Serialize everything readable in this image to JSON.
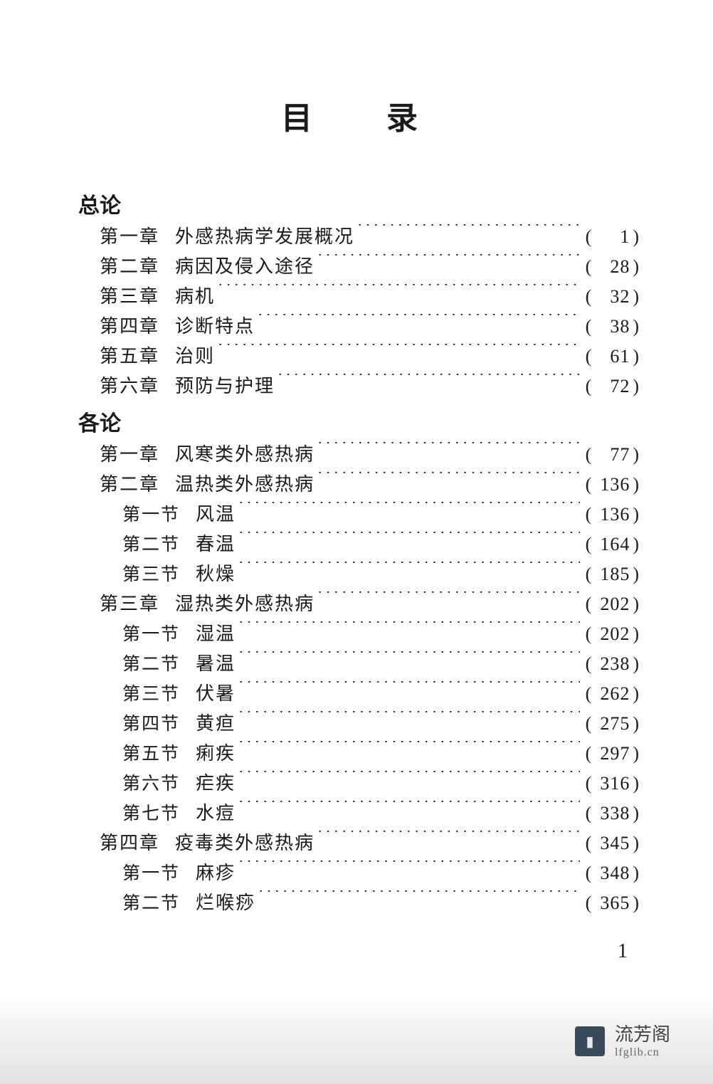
{
  "title": "目　录",
  "page_number": "1",
  "colors": {
    "text": "#1a1a1a",
    "background": "#ffffff",
    "footer_gradient_top": "rgba(180,180,180,0)",
    "footer_gradient_bottom": "rgba(140,140,140,0.25)",
    "footer_logo_bg": "#3a4a5a"
  },
  "typography": {
    "title_fontsize": 44,
    "heading_fontsize": 30,
    "row_fontsize": 26,
    "section_fontsize": 25,
    "font_family": "SimSun/STSong serif"
  },
  "footer": {
    "brand_cn": "流芳阁",
    "brand_en": "lfglib.cn",
    "logo_glyph": "▮"
  },
  "sections": [
    {
      "heading": "总论"
    },
    {
      "level": "chapter",
      "label": "第一章",
      "title": "外感热病学发展概况",
      "page": "1"
    },
    {
      "level": "chapter",
      "label": "第二章",
      "title": "病因及侵入途径",
      "page": "28"
    },
    {
      "level": "chapter",
      "label": "第三章",
      "title": "病机",
      "page": "32"
    },
    {
      "level": "chapter",
      "label": "第四章",
      "title": "诊断特点",
      "page": "38"
    },
    {
      "level": "chapter",
      "label": "第五章",
      "title": "治则",
      "page": "61"
    },
    {
      "level": "chapter",
      "label": "第六章",
      "title": "预防与护理",
      "page": "72"
    },
    {
      "heading": "各论"
    },
    {
      "level": "chapter",
      "label": "第一章",
      "title": "风寒类外感热病",
      "page": "77"
    },
    {
      "level": "chapter",
      "label": "第二章",
      "title": "温热类外感热病",
      "page": "136"
    },
    {
      "level": "section",
      "label": "第一节",
      "title": "风温",
      "page": "136"
    },
    {
      "level": "section",
      "label": "第二节",
      "title": "春温",
      "page": "164"
    },
    {
      "level": "section",
      "label": "第三节",
      "title": "秋燥",
      "page": "185"
    },
    {
      "level": "chapter",
      "label": "第三章",
      "title": "湿热类外感热病",
      "page": "202"
    },
    {
      "level": "section",
      "label": "第一节",
      "title": "湿温",
      "page": "202"
    },
    {
      "level": "section",
      "label": "第二节",
      "title": "暑温",
      "page": "238"
    },
    {
      "level": "section",
      "label": "第三节",
      "title": "伏暑",
      "page": "262"
    },
    {
      "level": "section",
      "label": "第四节",
      "title": "黄疸",
      "page": "275"
    },
    {
      "level": "section",
      "label": "第五节",
      "title": "痢疾",
      "page": "297"
    },
    {
      "level": "section",
      "label": "第六节",
      "title": "疟疾",
      "page": "316"
    },
    {
      "level": "section",
      "label": "第七节",
      "title": "水痘",
      "page": "338"
    },
    {
      "level": "chapter",
      "label": "第四章",
      "title": "疫毒类外感热病",
      "page": "345"
    },
    {
      "level": "section",
      "label": "第一节",
      "title": "麻疹",
      "page": "348"
    },
    {
      "level": "section",
      "label": "第二节",
      "title": "烂喉痧",
      "page": "365"
    }
  ]
}
